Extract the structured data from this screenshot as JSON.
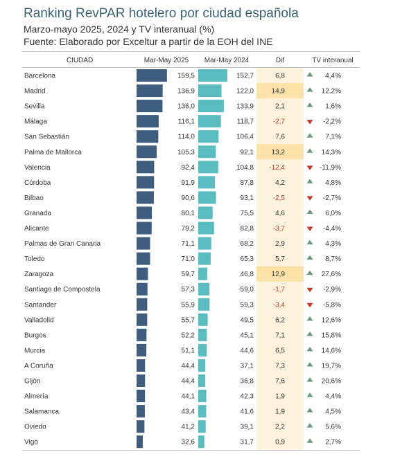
{
  "header": {
    "title": "Ranking RevPAR hotelero por ciudad española",
    "subtitle": "Marzo-mayo 2025, 2024 y TV interanual (%)",
    "source": "Fuente: Elaborado por Exceltur a partir de la EOH del INE"
  },
  "chart_data": {
    "type": "table",
    "columns": [
      "CIUDAD",
      "Mar-May 2025",
      "Mar-May 2024",
      "Dif",
      "TV interanual"
    ],
    "rows": [
      {
        "city": "Barcelona",
        "v2025": "159,5",
        "v2024": "152,7",
        "dif": "6,8",
        "tv": "4,4%"
      },
      {
        "city": "Madrid",
        "v2025": "136,9",
        "v2024": "122,0",
        "dif": "14,9",
        "tv": "12,2%"
      },
      {
        "city": "Sevilla",
        "v2025": "136,0",
        "v2024": "133,9",
        "dif": "2,1",
        "tv": "1,6%"
      },
      {
        "city": "Málaga",
        "v2025": "116,1",
        "v2024": "118,7",
        "dif": "-2,7",
        "tv": "-2,2%"
      },
      {
        "city": "San Sebastián",
        "v2025": "114,0",
        "v2024": "106,4",
        "dif": "7,6",
        "tv": "7,1%"
      },
      {
        "city": "Palma de Mallorca",
        "v2025": "105,3",
        "v2024": "92,1",
        "dif": "13,2",
        "tv": "14,3%"
      },
      {
        "city": "Valencia",
        "v2025": "92,4",
        "v2024": "104,8",
        "dif": "-12,4",
        "tv": "-11,9%"
      },
      {
        "city": "Córdoba",
        "v2025": "91,9",
        "v2024": "87,8",
        "dif": "4,2",
        "tv": "4,8%"
      },
      {
        "city": "Bilbao",
        "v2025": "90,6",
        "v2024": "93,1",
        "dif": "-2,5",
        "tv": "-2,7%"
      },
      {
        "city": "Granada",
        "v2025": "80,1",
        "v2024": "75,5",
        "dif": "4,6",
        "tv": "6,0%"
      },
      {
        "city": "Alicante",
        "v2025": "79,2",
        "v2024": "82,8",
        "dif": "-3,7",
        "tv": "-4,4%"
      },
      {
        "city": "Palmas de Gran Canaria",
        "v2025": "71,1",
        "v2024": "68,2",
        "dif": "2,9",
        "tv": "4,3%"
      },
      {
        "city": "Toledo",
        "v2025": "71,0",
        "v2024": "65,3",
        "dif": "5,7",
        "tv": "8,7%"
      },
      {
        "city": "Zaragoza",
        "v2025": "59,7",
        "v2024": "46,8",
        "dif": "12,9",
        "tv": "27,6%"
      },
      {
        "city": "Santiago de Compostela",
        "v2025": "57,3",
        "v2024": "59,0",
        "dif": "-1,7",
        "tv": "-2,9%"
      },
      {
        "city": "Santander",
        "v2025": "55,9",
        "v2024": "59,3",
        "dif": "-3,4",
        "tv": "-5,8%"
      },
      {
        "city": "Valladolid",
        "v2025": "55,7",
        "v2024": "49,5",
        "dif": "6,2",
        "tv": "12,6%"
      },
      {
        "city": "Burgos",
        "v2025": "52,2",
        "v2024": "45,1",
        "dif": "7,1",
        "tv": "15,8%"
      },
      {
        "city": "Murcia",
        "v2025": "51,1",
        "v2024": "44,6",
        "dif": "6,5",
        "tv": "14,6%"
      },
      {
        "city": "A Coruña",
        "v2025": "44,4",
        "v2024": "37,1",
        "dif": "7,3",
        "tv": "19,7%"
      },
      {
        "city": "Gijón",
        "v2025": "44,4",
        "v2024": "36,8",
        "dif": "7,6",
        "tv": "20,6%"
      },
      {
        "city": "Almería",
        "v2025": "44,1",
        "v2024": "42,3",
        "dif": "1,9",
        "tv": "4,4%"
      },
      {
        "city": "Salamanca",
        "v2025": "43,4",
        "v2024": "41,6",
        "dif": "1,9",
        "tv": "4,5%"
      },
      {
        "city": "Oviedo",
        "v2025": "41,2",
        "v2024": "39,1",
        "dif": "2,2",
        "tv": "5,6%"
      },
      {
        "city": "Vigo",
        "v2025": "32,6",
        "v2024": "31,7",
        "dif": "0,9",
        "tv": "2,7%"
      }
    ]
  },
  "colors": {
    "title": "#3a6170",
    "bar2025": "#3e5d7e",
    "bar2024": "#5bbcbf",
    "difCol": "#fdf3dd",
    "difHigh": "#fbe2a8",
    "negText": "#c0392b",
    "upArrow": "#6a9a7a",
    "downArrow": "#c0392b"
  }
}
